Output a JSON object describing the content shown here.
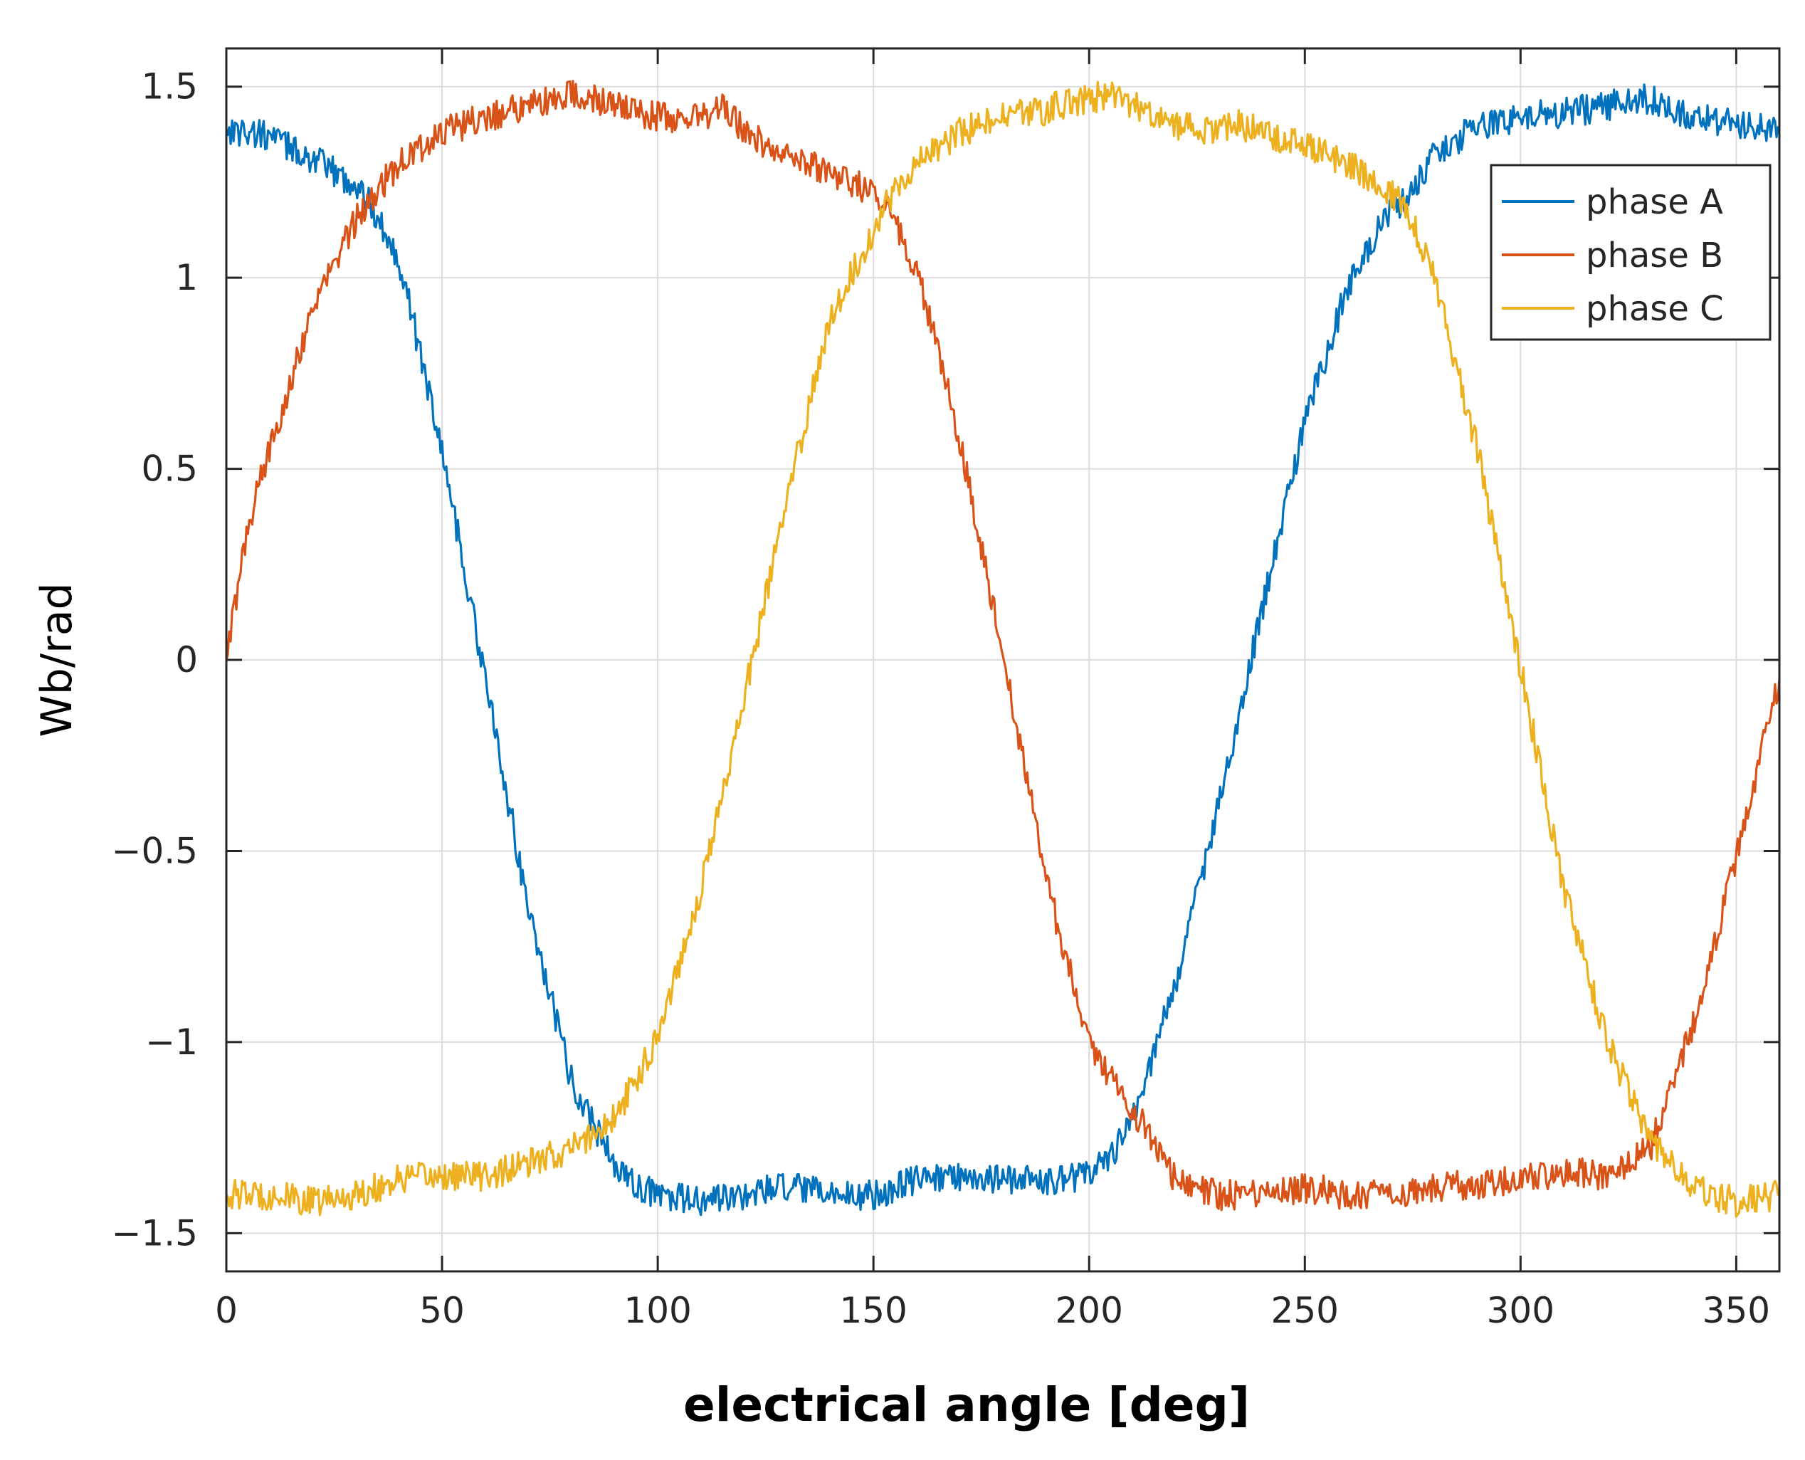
{
  "chart_data": {
    "type": "line",
    "title": "",
    "xlabel": "electrical angle [deg]",
    "ylabel": "Wb/rad",
    "xlim": [
      0,
      360
    ],
    "ylim": [
      -1.6,
      1.6
    ],
    "xticks": [
      0,
      50,
      100,
      150,
      200,
      250,
      300,
      350
    ],
    "xtick_labels": [
      "0",
      "50",
      "100",
      "150",
      "200",
      "250",
      "300",
      "350"
    ],
    "yticks": [
      -1.5,
      -1,
      -0.5,
      0,
      0.5,
      1,
      1.5
    ],
    "ytick_labels": [
      "−1.5",
      "−1",
      "−0.5",
      "0",
      "0.5",
      "1",
      "1.5"
    ],
    "grid": true,
    "legend": "top-right",
    "noise_amplitude": 0.04,
    "series": [
      {
        "name": "phase A",
        "color": "#0072BD",
        "x": [
          0,
          10,
          20,
          30,
          33,
          40,
          50,
          60,
          70,
          80,
          90,
          95,
          100,
          110,
          120,
          130,
          140,
          150,
          160,
          170,
          180,
          190,
          200,
          205,
          210,
          220,
          230,
          240,
          250,
          260,
          270,
          273,
          280,
          290,
          300,
          310,
          320,
          330,
          340,
          350,
          360
        ],
        "values": [
          1.39,
          1.37,
          1.31,
          1.24,
          1.2,
          1.05,
          0.55,
          -0.05,
          -0.65,
          -1.1,
          -1.32,
          -1.38,
          -1.4,
          -1.42,
          -1.4,
          -1.38,
          -1.4,
          -1.4,
          -1.36,
          -1.35,
          -1.36,
          -1.36,
          -1.35,
          -1.3,
          -1.2,
          -0.85,
          -0.38,
          0.13,
          0.62,
          0.98,
          1.18,
          1.2,
          1.32,
          1.4,
          1.42,
          1.43,
          1.45,
          1.47,
          1.42,
          1.4,
          1.38
        ]
      },
      {
        "name": "phase B",
        "color": "#D95319",
        "x": [
          0,
          5,
          10,
          20,
          30,
          33,
          40,
          50,
          60,
          70,
          80,
          90,
          100,
          110,
          115,
          120,
          130,
          140,
          150,
          153,
          160,
          170,
          180,
          190,
          200,
          210,
          213,
          220,
          230,
          240,
          250,
          260,
          270,
          280,
          290,
          300,
          310,
          320,
          330,
          340,
          350,
          360
        ],
        "values": [
          0.0,
          0.35,
          0.55,
          0.92,
          1.15,
          1.2,
          1.3,
          1.38,
          1.42,
          1.45,
          1.48,
          1.45,
          1.42,
          1.42,
          1.45,
          1.38,
          1.32,
          1.28,
          1.22,
          1.2,
          1.02,
          0.58,
          0.02,
          -0.58,
          -1.0,
          -1.18,
          -1.22,
          -1.36,
          -1.4,
          -1.4,
          -1.38,
          -1.4,
          -1.4,
          -1.38,
          -1.37,
          -1.36,
          -1.34,
          -1.35,
          -1.28,
          -0.95,
          -0.52,
          -0.05
        ]
      },
      {
        "name": "phase C",
        "color": "#EDB120",
        "x": [
          0,
          10,
          20,
          30,
          40,
          50,
          60,
          70,
          80,
          85,
          90,
          95,
          100,
          110,
          120,
          130,
          140,
          150,
          153,
          160,
          170,
          180,
          190,
          200,
          205,
          210,
          220,
          230,
          235,
          240,
          250,
          260,
          270,
          273,
          280,
          290,
          300,
          310,
          320,
          330,
          340,
          350,
          360
        ],
        "values": [
          -1.4,
          -1.4,
          -1.42,
          -1.4,
          -1.36,
          -1.35,
          -1.35,
          -1.32,
          -1.28,
          -1.24,
          -1.2,
          -1.1,
          -0.98,
          -0.6,
          -0.1,
          0.42,
          0.9,
          1.12,
          1.2,
          1.3,
          1.38,
          1.42,
          1.44,
          1.47,
          1.48,
          1.45,
          1.4,
          1.38,
          1.4,
          1.38,
          1.35,
          1.3,
          1.22,
          1.2,
          1.0,
          0.55,
          -0.02,
          -0.6,
          -1.0,
          -1.25,
          -1.38,
          -1.42,
          -1.4
        ]
      }
    ]
  }
}
